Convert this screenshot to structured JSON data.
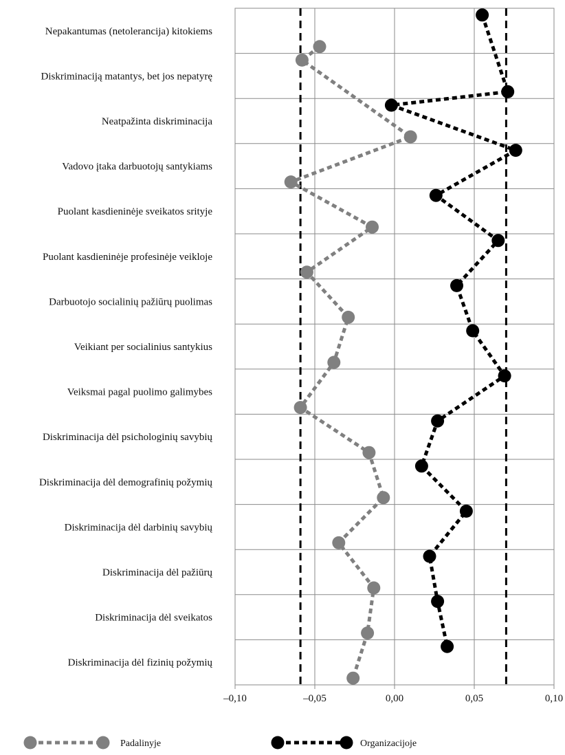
{
  "chart_data": {
    "type": "line",
    "orientation": "horizontal-categories",
    "categories": [
      "Nepakantumas (netolerancija) kitokiems",
      "Diskriminaciją matantys, bet jos nepatyrę",
      "Neatpažinta diskriminacija",
      "Vadovo įtaka darbuotojų santykiams",
      "Puolant kasdieninėje sveikatos srityje",
      "Puolant kasdieninėje profesinėje veikloje",
      "Darbuotojo socialinių pažiūrų puolimas",
      "Veikiant per socialinius santykius",
      "Veiksmai pagal puolimo galimybes",
      "Diskriminacija dėl psichologinių savybių",
      "Diskriminacija dėl demografinių požymių",
      "Diskriminacija dėl darbinių savybių",
      "Diskriminacija dėl pažiūrų",
      "Diskriminacija dėl sveikatos",
      "Diskriminacija dėl fizinių požymių"
    ],
    "series": [
      {
        "name": "Padalinyje",
        "color": "#808080",
        "values": [
          -0.047,
          -0.058,
          0.01,
          -0.065,
          -0.014,
          -0.055,
          -0.029,
          -0.038,
          -0.059,
          -0.016,
          -0.007,
          -0.035,
          -0.013,
          -0.017,
          -0.026
        ],
        "offsets": [
          0.35,
          -0.35,
          0.35,
          0.35,
          0.35,
          0.35,
          0.35,
          0.35,
          0.35,
          0.35,
          0.35,
          0.35,
          0.35,
          0.35,
          0.35
        ]
      },
      {
        "name": "Organizacijoje",
        "color": "#000000",
        "values": [
          0.055,
          0.071,
          -0.002,
          0.076,
          0.026,
          0.065,
          0.039,
          0.049,
          0.069,
          0.027,
          0.017,
          0.045,
          0.022,
          0.027,
          0.033
        ],
        "offsets": [
          -0.35,
          0.35,
          -0.35,
          -0.35,
          -0.35,
          -0.35,
          -0.35,
          -0.35,
          -0.35,
          -0.35,
          -0.35,
          -0.35,
          -0.35,
          -0.35,
          -0.35
        ]
      }
    ],
    "reference_lines": [
      -0.059,
      0.07
    ],
    "xlim": [
      -0.1,
      0.1
    ],
    "xticks": [
      {
        "value": -0.1,
        "label": "–0,10"
      },
      {
        "value": -0.05,
        "label": "–0,05"
      },
      {
        "value": 0.0,
        "label": "0,00"
      },
      {
        "value": 0.05,
        "label": "0,05"
      },
      {
        "value": 0.1,
        "label": "0,10"
      }
    ],
    "grid": true,
    "legend_position": "bottom"
  }
}
